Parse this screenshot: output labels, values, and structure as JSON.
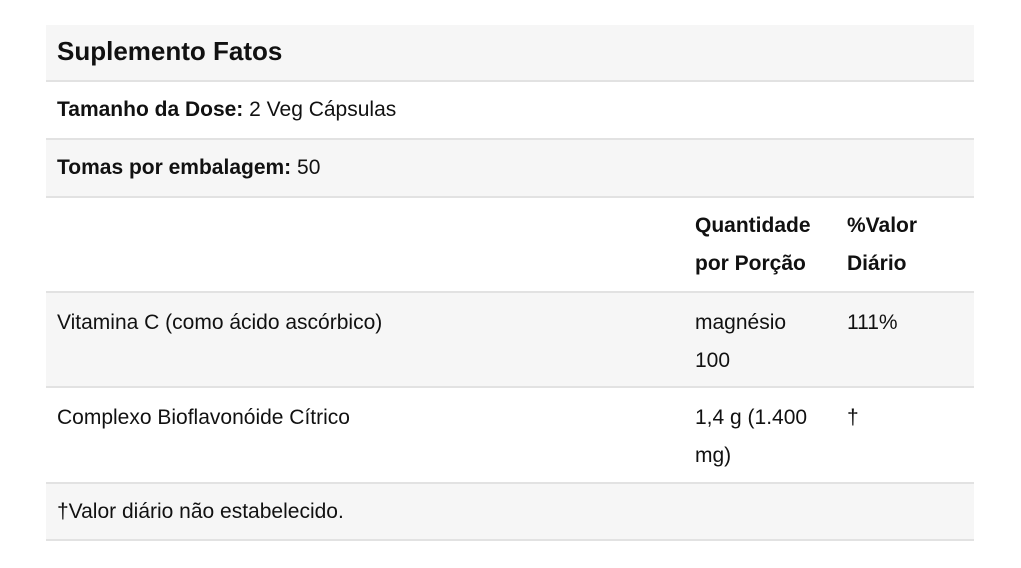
{
  "title": "Suplemento Fatos",
  "serving_size": {
    "label": "Tamanho da Dose:",
    "value": "2 Veg Cápsulas"
  },
  "servings_per_container": {
    "label": "Tomas por embalagem:",
    "value": "50"
  },
  "headers": {
    "amount": "Quantidade por Porção",
    "daily_value": "%Valor Diário"
  },
  "rows": [
    {
      "name": "Vitamina C (como ácido ascórbico)",
      "amount": "magnésio 100",
      "daily_value": "111%"
    },
    {
      "name": "Complexo Bioflavonóide Cítrico",
      "amount": "1,4 g (1.400 mg)",
      "daily_value": "†"
    }
  ],
  "footnote": "†Valor diário não estabelecido."
}
